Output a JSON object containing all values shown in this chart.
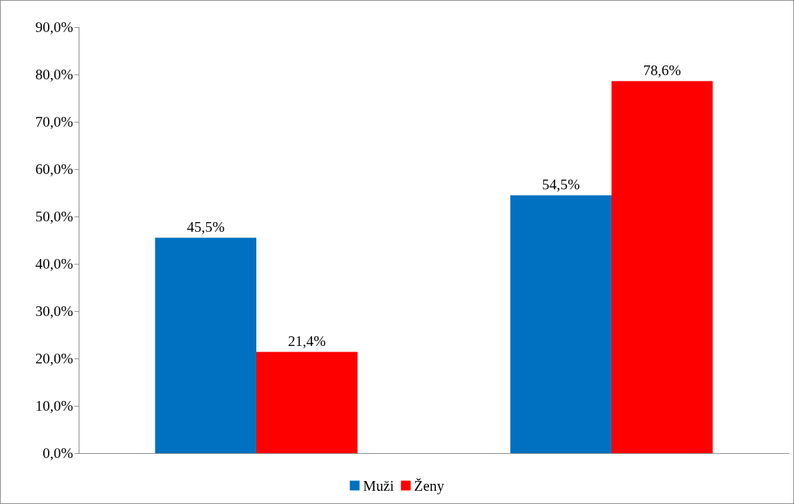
{
  "chart_data": {
    "type": "bar",
    "categories": [
      null,
      null
    ],
    "series": [
      {
        "name": "Muži",
        "color": "#0070c0",
        "values": [
          45.5,
          54.5
        ],
        "value_labels": [
          "45,5%",
          "54,5%"
        ]
      },
      {
        "name": "Ženy",
        "color": "#ff0000",
        "values": [
          21.4,
          78.6
        ],
        "value_labels": [
          "21,4%",
          "78,6%"
        ]
      }
    ],
    "ylim": [
      0,
      90
    ],
    "yticks": [
      {
        "value": 0,
        "label": "0,0%"
      },
      {
        "value": 10,
        "label": "10,0%"
      },
      {
        "value": 20,
        "label": "20,0%"
      },
      {
        "value": 30,
        "label": "30,0%"
      },
      {
        "value": 40,
        "label": "40,0%"
      },
      {
        "value": 50,
        "label": "50,0%"
      },
      {
        "value": 60,
        "label": "60,0%"
      },
      {
        "value": 70,
        "label": "70,0%"
      },
      {
        "value": 80,
        "label": "80,0%"
      },
      {
        "value": 90,
        "label": "90,0%"
      }
    ],
    "grid": false,
    "legend": "bottom"
  }
}
